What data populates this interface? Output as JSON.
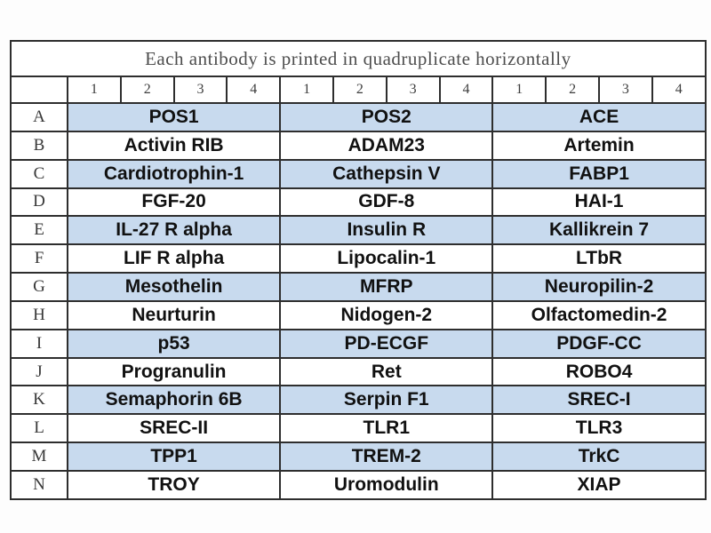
{
  "title": "Each antibody is printed in quadruplicate horizontally",
  "column_numbers": [
    "1",
    "2",
    "3",
    "4",
    "1",
    "2",
    "3",
    "4",
    "1",
    "2",
    "3",
    "4"
  ],
  "rows": [
    {
      "label": "A",
      "shaded": true,
      "cells": [
        "POS1",
        "POS2",
        "ACE"
      ]
    },
    {
      "label": "B",
      "shaded": false,
      "cells": [
        "Activin RIB",
        "ADAM23",
        "Artemin"
      ]
    },
    {
      "label": "C",
      "shaded": true,
      "cells": [
        "Cardiotrophin-1",
        "Cathepsin V",
        "FABP1"
      ]
    },
    {
      "label": "D",
      "shaded": false,
      "cells": [
        "FGF-20",
        "GDF-8",
        "HAI-1"
      ]
    },
    {
      "label": "E",
      "shaded": true,
      "cells": [
        "IL-27 R alpha",
        "Insulin R",
        "Kallikrein 7"
      ]
    },
    {
      "label": "F",
      "shaded": false,
      "cells": [
        "LIF R alpha",
        "Lipocalin-1",
        "LTbR"
      ]
    },
    {
      "label": "G",
      "shaded": true,
      "cells": [
        "Mesothelin",
        "MFRP",
        "Neuropilin-2"
      ]
    },
    {
      "label": "H",
      "shaded": false,
      "cells": [
        "Neurturin",
        "Nidogen-2",
        "Olfactomedin-2"
      ]
    },
    {
      "label": "I",
      "shaded": true,
      "cells": [
        "p53",
        "PD-ECGF",
        "PDGF-CC"
      ]
    },
    {
      "label": "J",
      "shaded": false,
      "cells": [
        "Progranulin",
        "Ret",
        "ROBO4"
      ]
    },
    {
      "label": "K",
      "shaded": true,
      "cells": [
        "Semaphorin 6B",
        "Serpin F1",
        "SREC-I"
      ]
    },
    {
      "label": "L",
      "shaded": false,
      "cells": [
        "SREC-II",
        "TLR1",
        "TLR3"
      ]
    },
    {
      "label": "M",
      "shaded": true,
      "cells": [
        "TPP1",
        "TREM-2",
        "TrkC"
      ]
    },
    {
      "label": "N",
      "shaded": false,
      "cells": [
        "TROY",
        "Uromodulin",
        "XIAP"
      ]
    }
  ],
  "colors": {
    "shaded_row": "#c8daee",
    "border": "#2e2e2e"
  }
}
